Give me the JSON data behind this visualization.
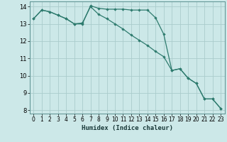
{
  "xlabel": "Humidex (Indice chaleur)",
  "ylabel": "",
  "bg_color": "#cce8e8",
  "line_color": "#2e7b6e",
  "grid_color": "#aacccc",
  "xlim": [
    -0.5,
    23.5
  ],
  "ylim": [
    7.8,
    14.3
  ],
  "yticks": [
    8,
    9,
    10,
    11,
    12,
    13,
    14
  ],
  "xticks": [
    0,
    1,
    2,
    3,
    4,
    5,
    6,
    7,
    8,
    9,
    10,
    11,
    12,
    13,
    14,
    15,
    16,
    17,
    18,
    19,
    20,
    21,
    22,
    23
  ],
  "series1_x": [
    0,
    1,
    2,
    3,
    4,
    5,
    6,
    7,
    8,
    9,
    10,
    11,
    12,
    13,
    14,
    15,
    16,
    17,
    18,
    19,
    20,
    21,
    22,
    23
  ],
  "series1_y": [
    13.3,
    13.8,
    13.7,
    13.5,
    13.3,
    13.0,
    13.0,
    14.05,
    13.9,
    13.85,
    13.85,
    13.85,
    13.8,
    13.8,
    13.8,
    13.35,
    12.4,
    10.3,
    10.4,
    9.85,
    9.55,
    8.65,
    8.65,
    8.1
  ],
  "series2_x": [
    0,
    1,
    2,
    3,
    4,
    5,
    6,
    7,
    8,
    9,
    10,
    11,
    12,
    13,
    14,
    15,
    16,
    17,
    18,
    19,
    20,
    21,
    22,
    23
  ],
  "series2_y": [
    13.3,
    13.8,
    13.7,
    13.5,
    13.3,
    13.0,
    13.05,
    14.0,
    13.55,
    13.3,
    13.0,
    12.7,
    12.35,
    12.05,
    11.75,
    11.4,
    11.1,
    10.3,
    10.4,
    9.85,
    9.55,
    8.65,
    8.65,
    8.1
  ],
  "xlabel_fontsize": 6.5,
  "tick_labelsize": 5.5,
  "ytick_labelsize": 6.0,
  "line_width": 0.9,
  "marker_size": 2.2
}
